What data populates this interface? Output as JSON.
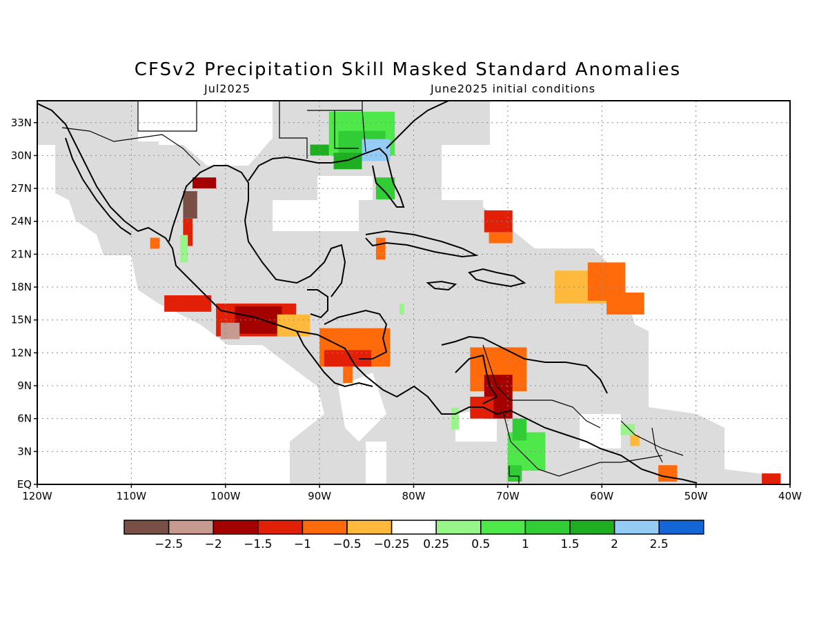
{
  "title": "CFSv2 Precipitation Skill Masked Standard Anomalies",
  "subtitle_left": "Jul2025",
  "subtitle_right": "June2025 initial conditions",
  "lon_labels": [
    "120W",
    "110W",
    "100W",
    "90W",
    "80W",
    "70W",
    "60W",
    "50W",
    "40W"
  ],
  "lat_labels": [
    "EQ",
    "3N",
    "6N",
    "9N",
    "12N",
    "15N",
    "18N",
    "21N",
    "24N",
    "27N",
    "30N",
    "33N"
  ],
  "colorbar": {
    "colors": [
      "#7a4f45",
      "#c79a8f",
      "#a40000",
      "#e21f07",
      "#ff6a0b",
      "#ffb93c",
      "#ffffff",
      "#98f58a",
      "#4ee84a",
      "#32cc36",
      "#1fae22",
      "#94ccf6",
      "#1466d6"
    ],
    "labels": [
      "−2.5",
      "−2",
      "−1.5",
      "−1",
      "−0.5",
      "−0.25",
      "0.25",
      "0.5",
      "1",
      "1.5",
      "2",
      "2.5"
    ]
  },
  "map": {
    "lon_range": [
      -120,
      -40
    ],
    "lat_range": [
      0,
      35
    ],
    "mask_color": "#dcdcdc",
    "anomaly_cells": [
      {
        "lon": -103.5,
        "lat": 27.5,
        "w": 2.5,
        "h": 1.0,
        "level": -1.5
      },
      {
        "lon": -104.5,
        "lat": 25.5,
        "w": 1.5,
        "h": 2.5,
        "level": -2.5
      },
      {
        "lon": -104.5,
        "lat": 23.0,
        "w": 1.0,
        "h": 2.5,
        "level": -1
      },
      {
        "lon": -104.8,
        "lat": 21.5,
        "w": 0.8,
        "h": 2.5,
        "level": 0.5
      },
      {
        "lon": -108.0,
        "lat": 22.0,
        "w": 1.0,
        "h": 1.0,
        "level": -0.5
      },
      {
        "lon": -106.5,
        "lat": 16.5,
        "w": 5.0,
        "h": 1.5,
        "level": -1
      },
      {
        "lon": -101.0,
        "lat": 15.0,
        "w": 8.5,
        "h": 3.0,
        "level": -1
      },
      {
        "lon": -99.0,
        "lat": 15.0,
        "w": 5.0,
        "h": 2.5,
        "level": -1.5
      },
      {
        "lon": -100.5,
        "lat": 14.0,
        "w": 2.0,
        "h": 1.5,
        "level": -2
      },
      {
        "lon": -94.5,
        "lat": 14.5,
        "w": 3.5,
        "h": 2.0,
        "level": -0.25
      },
      {
        "lon": -90.0,
        "lat": 12.5,
        "w": 7.5,
        "h": 3.5,
        "level": -0.5
      },
      {
        "lon": -89.5,
        "lat": 11.5,
        "w": 5.0,
        "h": 1.5,
        "level": -1
      },
      {
        "lon": -87.5,
        "lat": 10.0,
        "w": 1.0,
        "h": 1.5,
        "level": -0.5
      },
      {
        "lon": -74.0,
        "lat": 10.5,
        "w": 6.0,
        "h": 4.0,
        "level": -0.5
      },
      {
        "lon": -72.5,
        "lat": 8.0,
        "w": 3.0,
        "h": 4.0,
        "level": -1.5
      },
      {
        "lon": -74.0,
        "lat": 7.0,
        "w": 2.5,
        "h": 2.0,
        "level": -1
      },
      {
        "lon": -76.0,
        "lat": 6.0,
        "w": 0.8,
        "h": 2.0,
        "level": 0.5
      },
      {
        "lon": -72.5,
        "lat": 24.0,
        "w": 3.0,
        "h": 2.0,
        "level": -1
      },
      {
        "lon": -72.0,
        "lat": 22.5,
        "w": 2.5,
        "h": 1.0,
        "level": -0.5
      },
      {
        "lon": -65.0,
        "lat": 18.0,
        "w": 6.0,
        "h": 3.0,
        "level": -0.25
      },
      {
        "lon": -61.5,
        "lat": 18.5,
        "w": 4.0,
        "h": 3.5,
        "level": -0.5
      },
      {
        "lon": -59.5,
        "lat": 16.5,
        "w": 4.0,
        "h": 2.0,
        "level": -0.5
      },
      {
        "lon": -84.0,
        "lat": 21.5,
        "w": 1.0,
        "h": 2.0,
        "level": -0.5
      },
      {
        "lon": -54.0,
        "lat": 1.0,
        "w": 2.0,
        "h": 1.5,
        "level": -0.5
      },
      {
        "lon": -43.0,
        "lat": 0.5,
        "w": 2.0,
        "h": 1.0,
        "level": -1
      },
      {
        "lon": -70.0,
        "lat": 3.0,
        "w": 4.0,
        "h": 3.5,
        "level": 1
      },
      {
        "lon": -69.5,
        "lat": 5.0,
        "w": 1.5,
        "h": 2.0,
        "level": 1.5
      },
      {
        "lon": -70.0,
        "lat": 1.0,
        "w": 1.5,
        "h": 1.5,
        "level": 1.5
      },
      {
        "lon": -58.0,
        "lat": 5.0,
        "w": 1.5,
        "h": 1.0,
        "level": 0.5
      },
      {
        "lon": -57.0,
        "lat": 4.0,
        "w": 1.0,
        "h": 1.0,
        "level": -0.25
      },
      {
        "lon": -89.0,
        "lat": 32.0,
        "w": 7.0,
        "h": 4.0,
        "level": 1
      },
      {
        "lon": -88.0,
        "lat": 31.0,
        "w": 5.0,
        "h": 2.5,
        "level": 1.5
      },
      {
        "lon": -85.5,
        "lat": 30.5,
        "w": 3.0,
        "h": 2.0,
        "level": 2.5
      },
      {
        "lon": -88.5,
        "lat": 29.5,
        "w": 3.0,
        "h": 1.5,
        "level": 2
      },
      {
        "lon": -91.0,
        "lat": 30.5,
        "w": 2.0,
        "h": 1.0,
        "level": 2
      },
      {
        "lon": -84.0,
        "lat": 27.0,
        "w": 2.0,
        "h": 2.0,
        "level": 1.5
      },
      {
        "lon": -81.5,
        "lat": 16.0,
        "w": 0.5,
        "h": 1.0,
        "level": 0.5
      }
    ]
  }
}
